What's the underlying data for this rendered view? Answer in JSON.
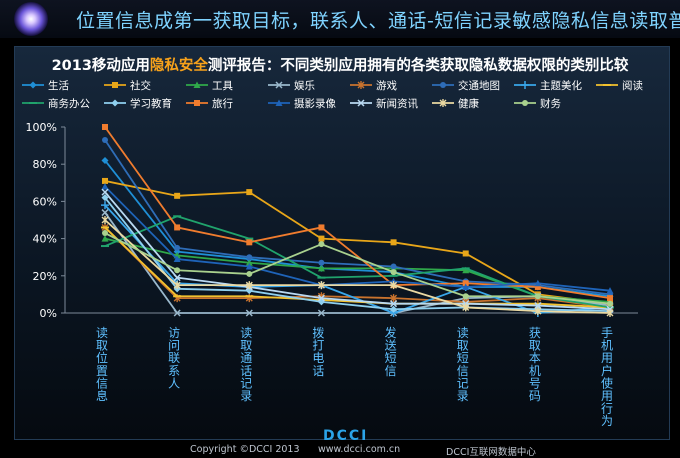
{
  "header": {
    "title": "位置信息成第一获取目标，联系人、通话-短信记录敏感隐私信息读取普遍"
  },
  "chart_data": {
    "type": "line",
    "title_parts": [
      "2013移动应用",
      "隐私安全",
      "测评报告：不同类别应用拥有的各类获取隐私数据权限的类别比较"
    ],
    "categories": [
      "读取位置信息",
      "访问联系人",
      "读取通话记录",
      "拨打电话",
      "发送短信",
      "读取短信记录",
      "获取本机号码",
      "手机用户使用行为"
    ],
    "ylim": [
      0,
      100
    ],
    "yticks": [
      "0%",
      "20%",
      "40%",
      "60%",
      "80%",
      "100%"
    ],
    "legend_position": "top",
    "series": [
      {
        "name": "生活",
        "color": "#1f8fd6",
        "marker": "diamond",
        "values": [
          82,
          33,
          29,
          24,
          22,
          14,
          14,
          9
        ]
      },
      {
        "name": "社交",
        "color": "#e8a619",
        "marker": "square",
        "values": [
          71,
          63,
          65,
          40,
          38,
          32,
          10,
          5
        ]
      },
      {
        "name": "工具",
        "color": "#2fa84a",
        "marker": "triangle",
        "values": [
          40,
          31,
          27,
          24,
          24,
          23,
          9,
          6
        ]
      },
      {
        "name": "娱乐",
        "color": "#9ab8cc",
        "marker": "x",
        "values": [
          54,
          0,
          0,
          0,
          0,
          8,
          9,
          4
        ]
      },
      {
        "name": "游戏",
        "color": "#c9732e",
        "marker": "asterisk",
        "values": [
          46,
          8,
          8,
          9,
          8,
          6,
          8,
          3
        ]
      },
      {
        "name": "交通地图",
        "color": "#2e6db8",
        "marker": "circle",
        "values": [
          93,
          35,
          30,
          27,
          25,
          17,
          15,
          10
        ]
      },
      {
        "name": "主题美化",
        "color": "#39a6ea",
        "marker": "plus",
        "values": [
          58,
          16,
          14,
          15,
          0,
          14,
          0,
          3
        ]
      },
      {
        "name": "阅读",
        "color": "#f2c12e",
        "marker": "dash",
        "values": [
          46,
          9,
          9,
          7,
          5,
          5,
          5,
          3
        ]
      },
      {
        "name": "商务办公",
        "color": "#20a36c",
        "marker": "dash",
        "values": [
          36,
          52,
          40,
          19,
          20,
          24,
          9,
          3
        ]
      },
      {
        "name": "学习教育",
        "color": "#8fd0ef",
        "marker": "diamond",
        "values": [
          62,
          13,
          12,
          6,
          2,
          3,
          2,
          1
        ]
      },
      {
        "name": "旅行",
        "color": "#f07c2e",
        "marker": "square",
        "values": [
          100,
          46,
          38,
          46,
          15,
          16,
          14,
          8
        ]
      },
      {
        "name": "摄影录像",
        "color": "#1e63b8",
        "marker": "triangle",
        "values": [
          68,
          29,
          25,
          15,
          17,
          14,
          16,
          12
        ]
      },
      {
        "name": "新闻资讯",
        "color": "#b9d9f2",
        "marker": "x",
        "values": [
          65,
          19,
          14,
          8,
          5,
          5,
          4,
          2
        ]
      },
      {
        "name": "健康",
        "color": "#ead9a2",
        "marker": "asterisk",
        "values": [
          50,
          15,
          15,
          15,
          15,
          3,
          1,
          0
        ]
      },
      {
        "name": "财务",
        "color": "#a9d18e",
        "marker": "circle",
        "values": [
          43,
          23,
          21,
          37,
          22,
          9,
          9,
          5
        ]
      }
    ]
  },
  "footer": {
    "copyright": "Copyright ©DCCI 2013",
    "logo": "DCCI",
    "site": "www.dcci.com.cn",
    "center": "DCCI互联网数据中心"
  }
}
